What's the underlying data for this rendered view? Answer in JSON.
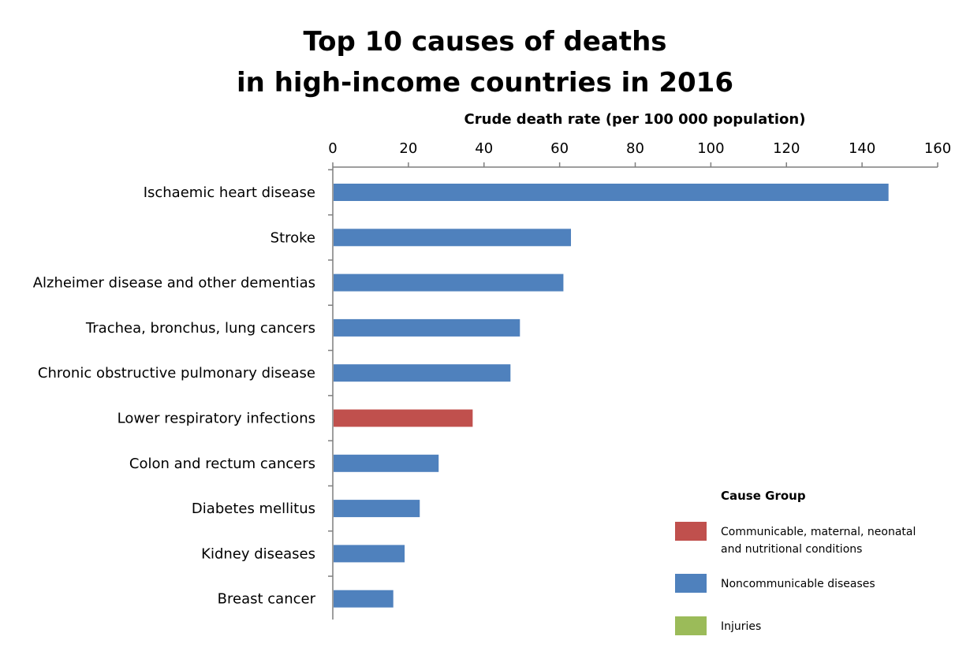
{
  "chart_data": {
    "type": "bar",
    "orientation": "horizontal",
    "title_lines": [
      "Top 10 causes of deaths",
      "in high-income countries in 2016"
    ],
    "xlabel": "Crude death rate (per 100 000 population)",
    "ylabel": "",
    "xlim": [
      0,
      160
    ],
    "x_ticks": [
      "0",
      "20",
      "40",
      "60",
      "80",
      "100",
      "120",
      "140",
      "160"
    ],
    "grid": false,
    "legend_position": "bottom-right",
    "categories": [
      "Ischaemic heart disease",
      "Stroke",
      "Alzheimer disease and other dementias",
      "Trachea, bronchus, lung cancers",
      "Chronic obstructive pulmonary disease",
      "Lower respiratory infections",
      "Colon and rectum cancers",
      "Diabetes mellitus",
      "Kidney diseases",
      "Breast cancer"
    ],
    "values": [
      147,
      63,
      61,
      49.5,
      47,
      37,
      28,
      23,
      19,
      16
    ],
    "groups": [
      "Noncommunicable diseases",
      "Noncommunicable diseases",
      "Noncommunicable diseases",
      "Noncommunicable diseases",
      "Noncommunicable diseases",
      "Communicable, maternal, neonatal and nutritional conditions",
      "Noncommunicable diseases",
      "Noncommunicable diseases",
      "Noncommunicable diseases",
      "Noncommunicable diseases"
    ],
    "legend": {
      "title": "Cause Group",
      "items": [
        {
          "label_lines": [
            "Communicable, maternal, neonatal",
            "and nutritional conditions"
          ],
          "group": "Communicable, maternal, neonatal and nutritional conditions",
          "color": "#c0504d"
        },
        {
          "label_lines": [
            "Noncommunicable diseases"
          ],
          "group": "Noncommunicable diseases",
          "color": "#4f81bd"
        },
        {
          "label_lines": [
            "Injuries"
          ],
          "group": "Injuries",
          "color": "#9bbb59"
        }
      ]
    }
  }
}
